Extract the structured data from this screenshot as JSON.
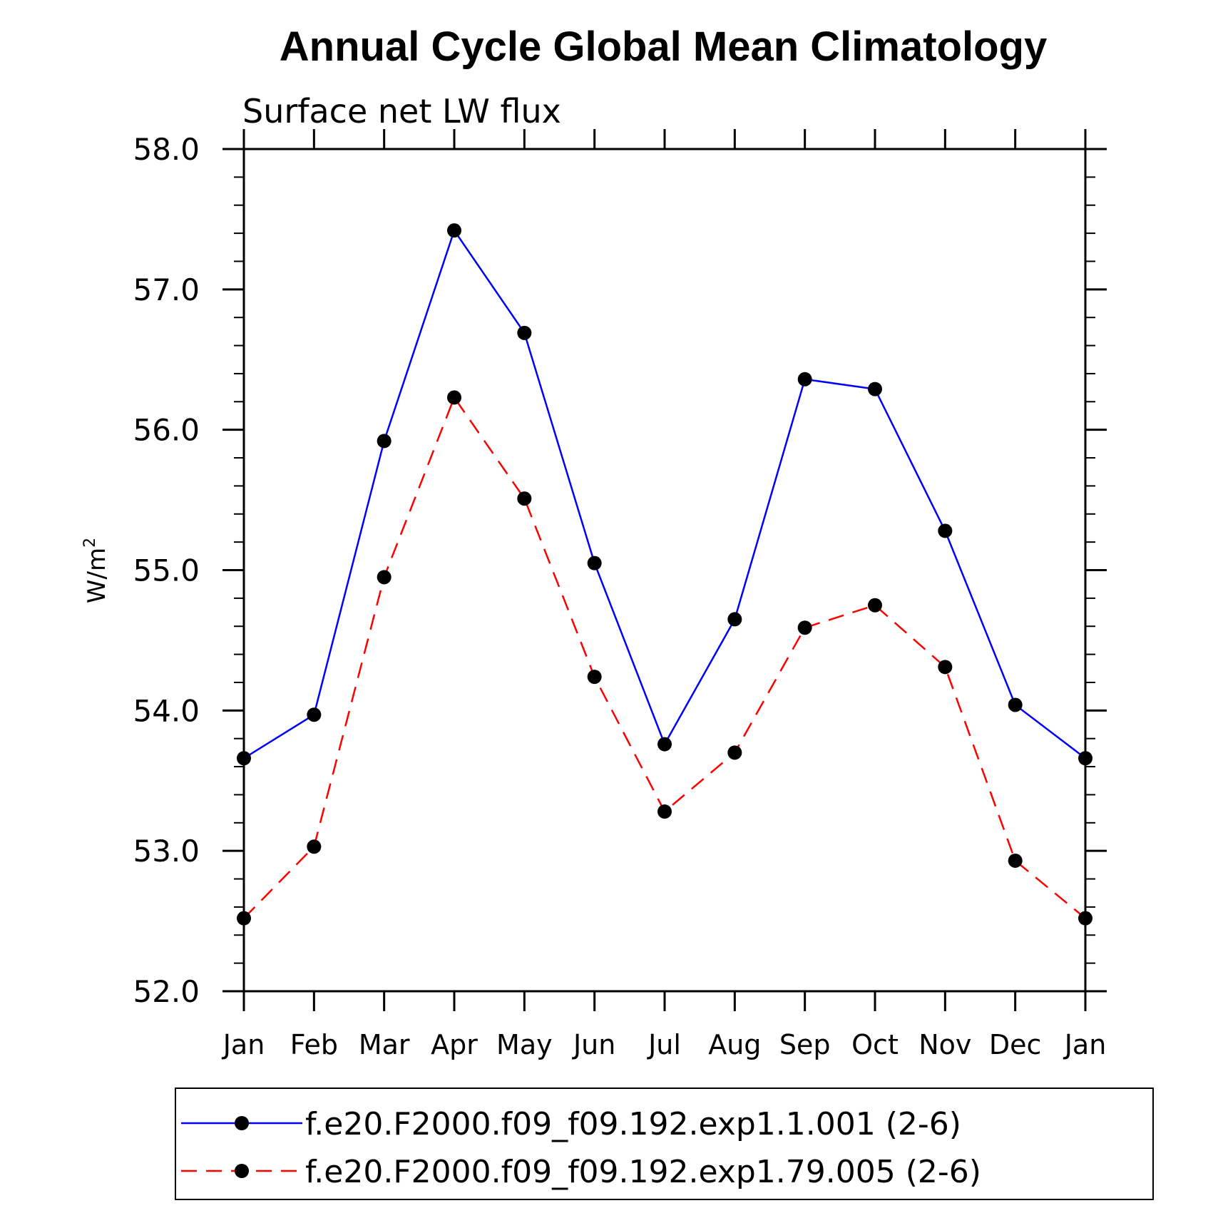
{
  "chart_data": {
    "type": "line",
    "title": "Annual Cycle Global Mean Climatology",
    "subtitle": "Surface net LW flux",
    "xlabel": "",
    "ylabel": "W/m",
    "ylabel_superscript": "2",
    "categories": [
      "Jan",
      "Feb",
      "Mar",
      "Apr",
      "May",
      "Jun",
      "Jul",
      "Aug",
      "Sep",
      "Oct",
      "Nov",
      "Dec",
      "Jan"
    ],
    "ylim": [
      52.0,
      58.0
    ],
    "yticks": [
      "52.0",
      "53.0",
      "54.0",
      "55.0",
      "56.0",
      "57.0",
      "58.0"
    ],
    "y_minor_step": 0.2,
    "grid": false,
    "legend_position": "bottom",
    "series": [
      {
        "name": "f.e20.F2000.f09_f09.192.exp1.1.001 (2-6)",
        "color": "#0000ff",
        "style": "solid",
        "marker": "filled-circle",
        "values": [
          53.66,
          53.97,
          55.92,
          57.42,
          56.69,
          55.05,
          53.76,
          54.65,
          56.36,
          56.29,
          55.28,
          54.04,
          53.66
        ]
      },
      {
        "name": "f.e20.F2000.f09_f09.192.exp1.79.005 (2-6)",
        "color": "#ff0000",
        "style": "dashed",
        "marker": "filled-circle",
        "values": [
          52.52,
          53.03,
          54.95,
          56.23,
          55.51,
          54.24,
          53.28,
          53.7,
          54.59,
          54.75,
          54.31,
          52.93,
          52.52
        ]
      }
    ]
  }
}
